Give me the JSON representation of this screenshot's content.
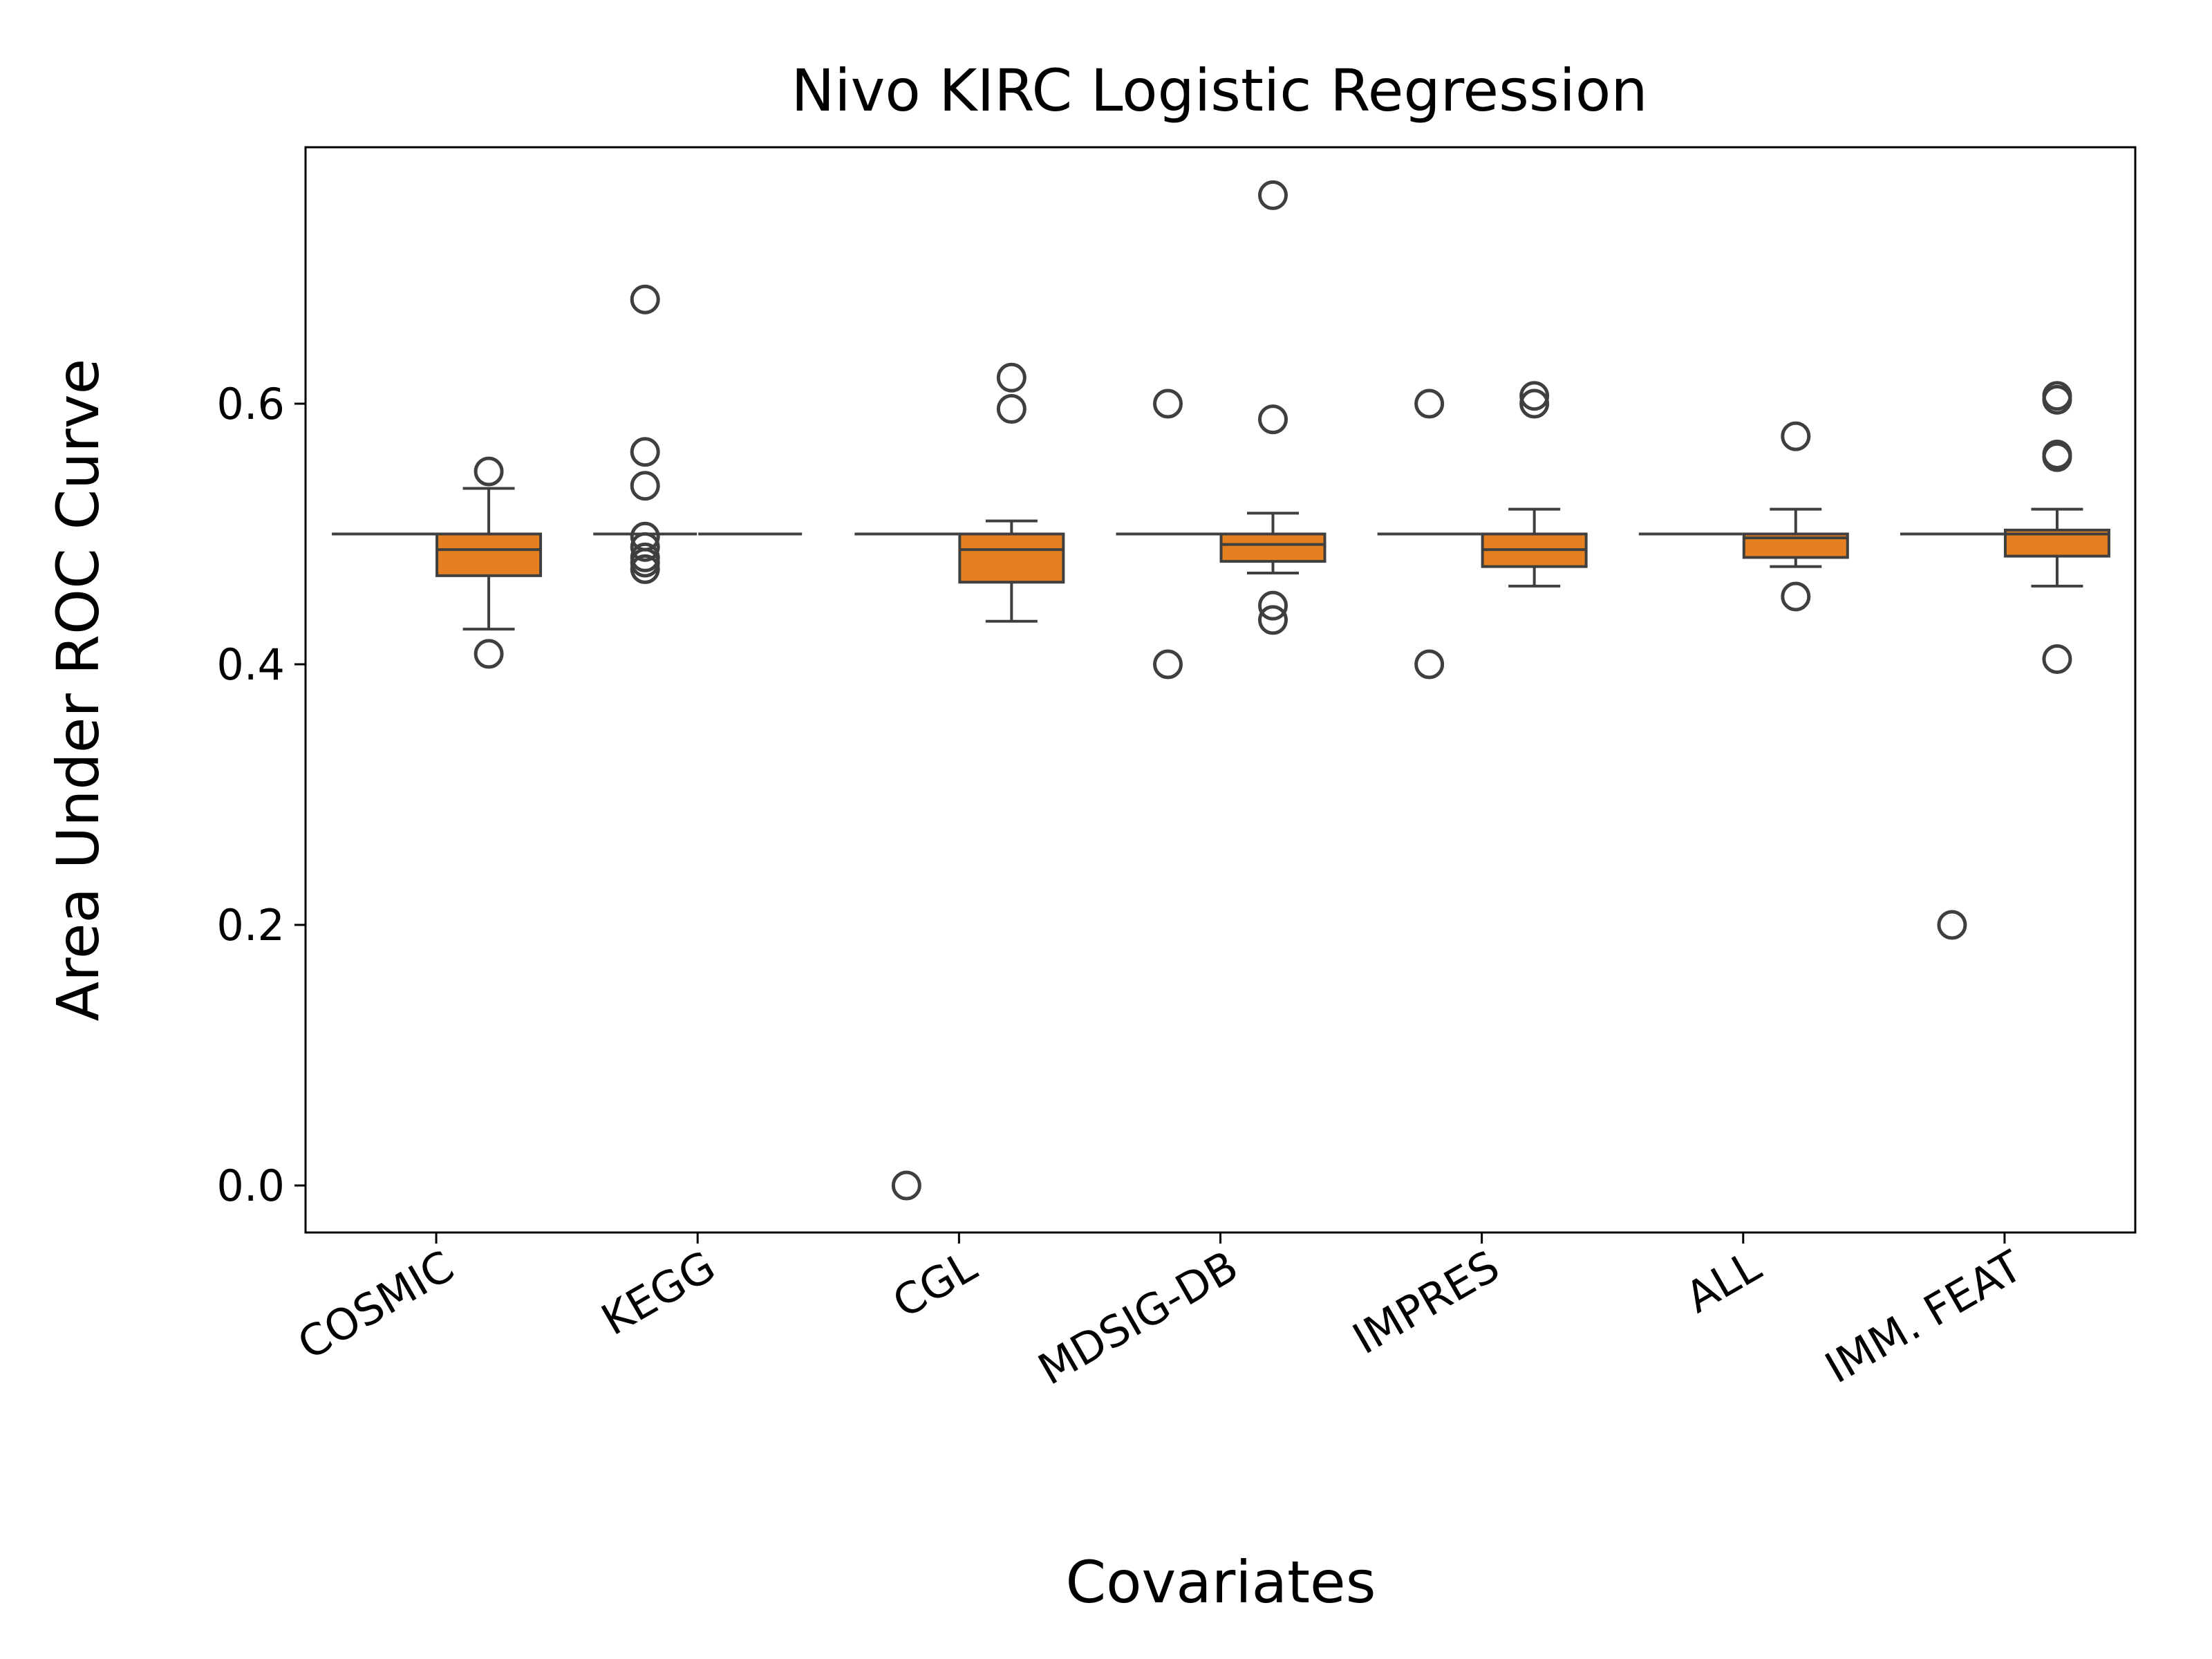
{
  "chart_data": {
    "type": "box",
    "title": "Nivo  KIRC  Logistic Regression",
    "xlabel": "Covariates",
    "ylabel": "Area Under ROC Curve",
    "ylim": [
      -0.04,
      0.795
    ],
    "yticks": [
      "0.0",
      "0.2",
      "0.4",
      "0.6"
    ],
    "ytick_values": [
      0.0,
      0.2,
      0.4,
      0.6
    ],
    "categories": [
      "COSMIC",
      "KEGG",
      "CGL",
      "MDSIG-DB",
      "IMPRES",
      "ALL",
      "IMM. FEAT"
    ],
    "grid": false,
    "legend": "none",
    "series": [
      {
        "color": "#808080",
        "boxes": [
          {
            "category": "COSMIC",
            "q1": 0.5,
            "median": 0.5,
            "q3": 0.5,
            "whisker_low": 0.5,
            "whisker_high": 0.5,
            "outliers": []
          },
          {
            "category": "KEGG",
            "q1": 0.5,
            "median": 0.5,
            "q3": 0.5,
            "whisker_low": 0.5,
            "whisker_high": 0.5,
            "outliers": [
              0.68,
              0.563,
              0.537,
              0.498,
              0.49,
              0.482,
              0.478,
              0.473
            ]
          },
          {
            "category": "CGL",
            "q1": 0.5,
            "median": 0.5,
            "q3": 0.5,
            "whisker_low": 0.5,
            "whisker_high": 0.5,
            "outliers": [
              0.0
            ]
          },
          {
            "category": "MDSIG-DB",
            "q1": 0.5,
            "median": 0.5,
            "q3": 0.5,
            "whisker_low": 0.5,
            "whisker_high": 0.5,
            "outliers": [
              0.6,
              0.4
            ]
          },
          {
            "category": "IMPRES",
            "q1": 0.5,
            "median": 0.5,
            "q3": 0.5,
            "whisker_low": 0.5,
            "whisker_high": 0.5,
            "outliers": [
              0.6,
              0.4
            ]
          },
          {
            "category": "ALL",
            "q1": 0.5,
            "median": 0.5,
            "q3": 0.5,
            "whisker_low": 0.5,
            "whisker_high": 0.5,
            "outliers": []
          },
          {
            "category": "IMM. FEAT",
            "q1": 0.5,
            "median": 0.5,
            "q3": 0.5,
            "whisker_low": 0.5,
            "whisker_high": 0.5,
            "outliers": [
              0.2
            ]
          }
        ]
      },
      {
        "color": "#e57f1f",
        "boxes": [
          {
            "category": "COSMIC",
            "q1": 0.468,
            "median": 0.488,
            "q3": 0.5,
            "whisker_low": 0.427,
            "whisker_high": 0.535,
            "outliers": [
              0.548,
              0.408
            ]
          },
          {
            "category": "KEGG",
            "q1": 0.5,
            "median": 0.5,
            "q3": 0.5,
            "whisker_low": 0.5,
            "whisker_high": 0.5,
            "outliers": []
          },
          {
            "category": "CGL",
            "q1": 0.463,
            "median": 0.488,
            "q3": 0.5,
            "whisker_low": 0.433,
            "whisker_high": 0.51,
            "outliers": [
              0.62,
              0.596
            ]
          },
          {
            "category": "MDSIG-DB",
            "q1": 0.479,
            "median": 0.492,
            "q3": 0.5,
            "whisker_low": 0.47,
            "whisker_high": 0.516,
            "outliers": [
              0.76,
              0.588,
              0.445,
              0.434
            ]
          },
          {
            "category": "IMPRES",
            "q1": 0.475,
            "median": 0.488,
            "q3": 0.5,
            "whisker_low": 0.46,
            "whisker_high": 0.519,
            "outliers": [
              0.606,
              0.6
            ]
          },
          {
            "category": "ALL",
            "q1": 0.482,
            "median": 0.497,
            "q3": 0.5,
            "whisker_low": 0.475,
            "whisker_high": 0.519,
            "outliers": [
              0.575,
              0.452
            ]
          },
          {
            "category": "IMM. FEAT",
            "q1": 0.483,
            "median": 0.5,
            "q3": 0.503,
            "whisker_low": 0.46,
            "whisker_high": 0.519,
            "outliers": [
              0.606,
              0.603,
              0.561,
              0.559,
              0.404
            ]
          }
        ]
      }
    ]
  }
}
